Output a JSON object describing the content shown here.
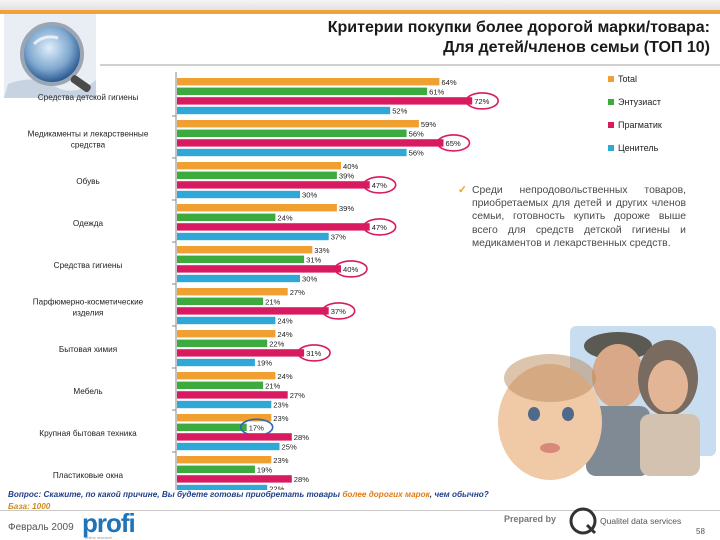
{
  "header": {
    "title_line1": "Критерии покупки более дорогой марки/товара:",
    "title_line2": "Для детей/членов семьи (ТОП 10)"
  },
  "chart_data": {
    "type": "bar",
    "orientation": "horizontal",
    "categories": [
      [
        "Средства детской гигиены"
      ],
      [
        "Медикаменты и лекарственные",
        "средства"
      ],
      [
        "Обувь"
      ],
      [
        "Одежда"
      ],
      [
        "Средства гигиены"
      ],
      [
        "Парфюмерно-косметические",
        "изделия"
      ],
      [
        "Бытовая химия"
      ],
      [
        "Мебель"
      ],
      [
        "Крупная бытовая техника"
      ],
      [
        "Пластиковые окна"
      ]
    ],
    "series": [
      {
        "name": "Total",
        "color": "#f0a030",
        "values": [
          64,
          59,
          40,
          39,
          33,
          27,
          24,
          24,
          23,
          23
        ]
      },
      {
        "name": "Энтузиаст",
        "color": "#3caa3c",
        "values": [
          61,
          56,
          39,
          24,
          31,
          21,
          22,
          21,
          17,
          19
        ]
      },
      {
        "name": "Прагматик",
        "color": "#d81b60",
        "values": [
          72,
          65,
          47,
          47,
          40,
          37,
          31,
          27,
          28,
          28
        ]
      },
      {
        "name": "Ценитель",
        "color": "#2fa8d8",
        "values": [
          52,
          56,
          30,
          37,
          30,
          24,
          19,
          23,
          25,
          22
        ]
      }
    ],
    "highlighted": [
      {
        "category": 0,
        "series": 2
      },
      {
        "category": 1,
        "series": 2
      },
      {
        "category": 2,
        "series": 2
      },
      {
        "category": 3,
        "series": 2
      },
      {
        "category": 4,
        "series": 2
      },
      {
        "category": 5,
        "series": 2
      },
      {
        "category": 6,
        "series": 2
      },
      {
        "category": 8,
        "series": 1
      }
    ],
    "value_suffix": "%",
    "xlim": [
      0,
      100
    ],
    "legend_position": "right",
    "grid": false
  },
  "note": {
    "check": "✓",
    "text": "Среди непродовольственных товаров, приобретаемых для детей и других членов семьи, готовность купить дороже выше всего для средств детской гигиены и медикаментов и лекарственных средств."
  },
  "footer": {
    "question_prefix": "Вопрос: Скажите, по какой причине, Вы будете готовы приобретать товары ",
    "question_highlight": "более дорогих марок",
    "question_suffix": ", чем обычно?",
    "base": "База: 1000",
    "date": "Февраль 2009",
    "logo": "profi",
    "logo_sub": "online research",
    "prepared_by": "Prepared by",
    "company": "Qualitel data services",
    "page": "58"
  }
}
